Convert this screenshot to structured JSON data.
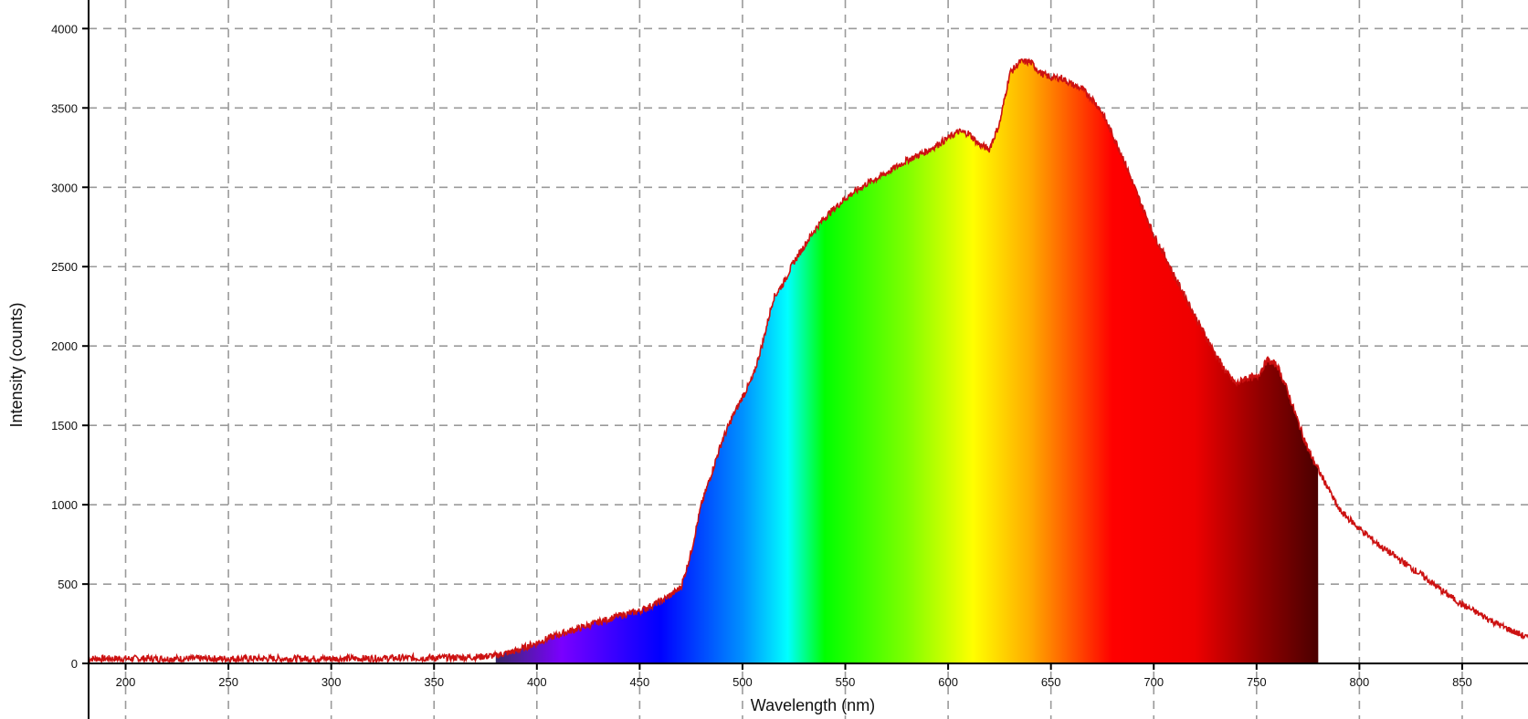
{
  "chart_data": {
    "type": "area",
    "title": "",
    "xlabel": "Wavelength (nm)",
    "ylabel": "Intensity (counts)",
    "xlim": [
      182,
      882
    ],
    "ylim": [
      -350,
      4180
    ],
    "grid": true,
    "grid_style": "dashed",
    "x_ticks": [
      200,
      250,
      300,
      350,
      400,
      450,
      500,
      550,
      600,
      650,
      700,
      750,
      800,
      850
    ],
    "x_tick_labels": [
      "200",
      "250",
      "300",
      "350",
      "400",
      "450",
      "500",
      "550",
      "600",
      "650",
      "700",
      "750",
      "800",
      "850"
    ],
    "y_ticks": [
      0,
      500,
      1000,
      1500,
      2000,
      2500,
      3000,
      3500,
      4000
    ],
    "y_tick_labels": [
      "0",
      "500",
      "1000",
      "1500",
      "2000",
      "2500",
      "3000",
      "3500",
      "4000"
    ],
    "fill_range": [
      380,
      780
    ],
    "line_color": "#cc1111",
    "series": [
      {
        "x": [
          182,
          200,
          250,
          300,
          350,
          370,
          380,
          390,
          400,
          410,
          420,
          430,
          440,
          450,
          455,
          460,
          465,
          470,
          472,
          475,
          480,
          485,
          490,
          495,
          500,
          505,
          510,
          515,
          520,
          525,
          530,
          535,
          540,
          545,
          550,
          560,
          570,
          580,
          590,
          600,
          605,
          610,
          615,
          620,
          625,
          630,
          635,
          640,
          645,
          650,
          655,
          660,
          665,
          670,
          675,
          680,
          685,
          690,
          695,
          700,
          705,
          710,
          715,
          720,
          725,
          730,
          735,
          740,
          745,
          750,
          755,
          760,
          765,
          770,
          775,
          780,
          785,
          790,
          800,
          810,
          820,
          830,
          840,
          850,
          860,
          870,
          882
        ],
        "y": [
          30,
          30,
          30,
          30,
          35,
          40,
          50,
          80,
          130,
          180,
          220,
          260,
          300,
          330,
          360,
          390,
          430,
          480,
          560,
          700,
          1000,
          1200,
          1400,
          1550,
          1680,
          1800,
          2030,
          2300,
          2400,
          2530,
          2630,
          2730,
          2810,
          2870,
          2930,
          3020,
          3090,
          3170,
          3230,
          3310,
          3350,
          3340,
          3270,
          3240,
          3400,
          3720,
          3790,
          3790,
          3720,
          3690,
          3690,
          3650,
          3620,
          3560,
          3470,
          3330,
          3190,
          3020,
          2860,
          2700,
          2580,
          2440,
          2320,
          2190,
          2070,
          1950,
          1840,
          1760,
          1800,
          1800,
          1910,
          1880,
          1720,
          1530,
          1350,
          1220,
          1100,
          970,
          850,
          740,
          650,
          560,
          460,
          370,
          300,
          230,
          160
        ]
      }
    ]
  }
}
